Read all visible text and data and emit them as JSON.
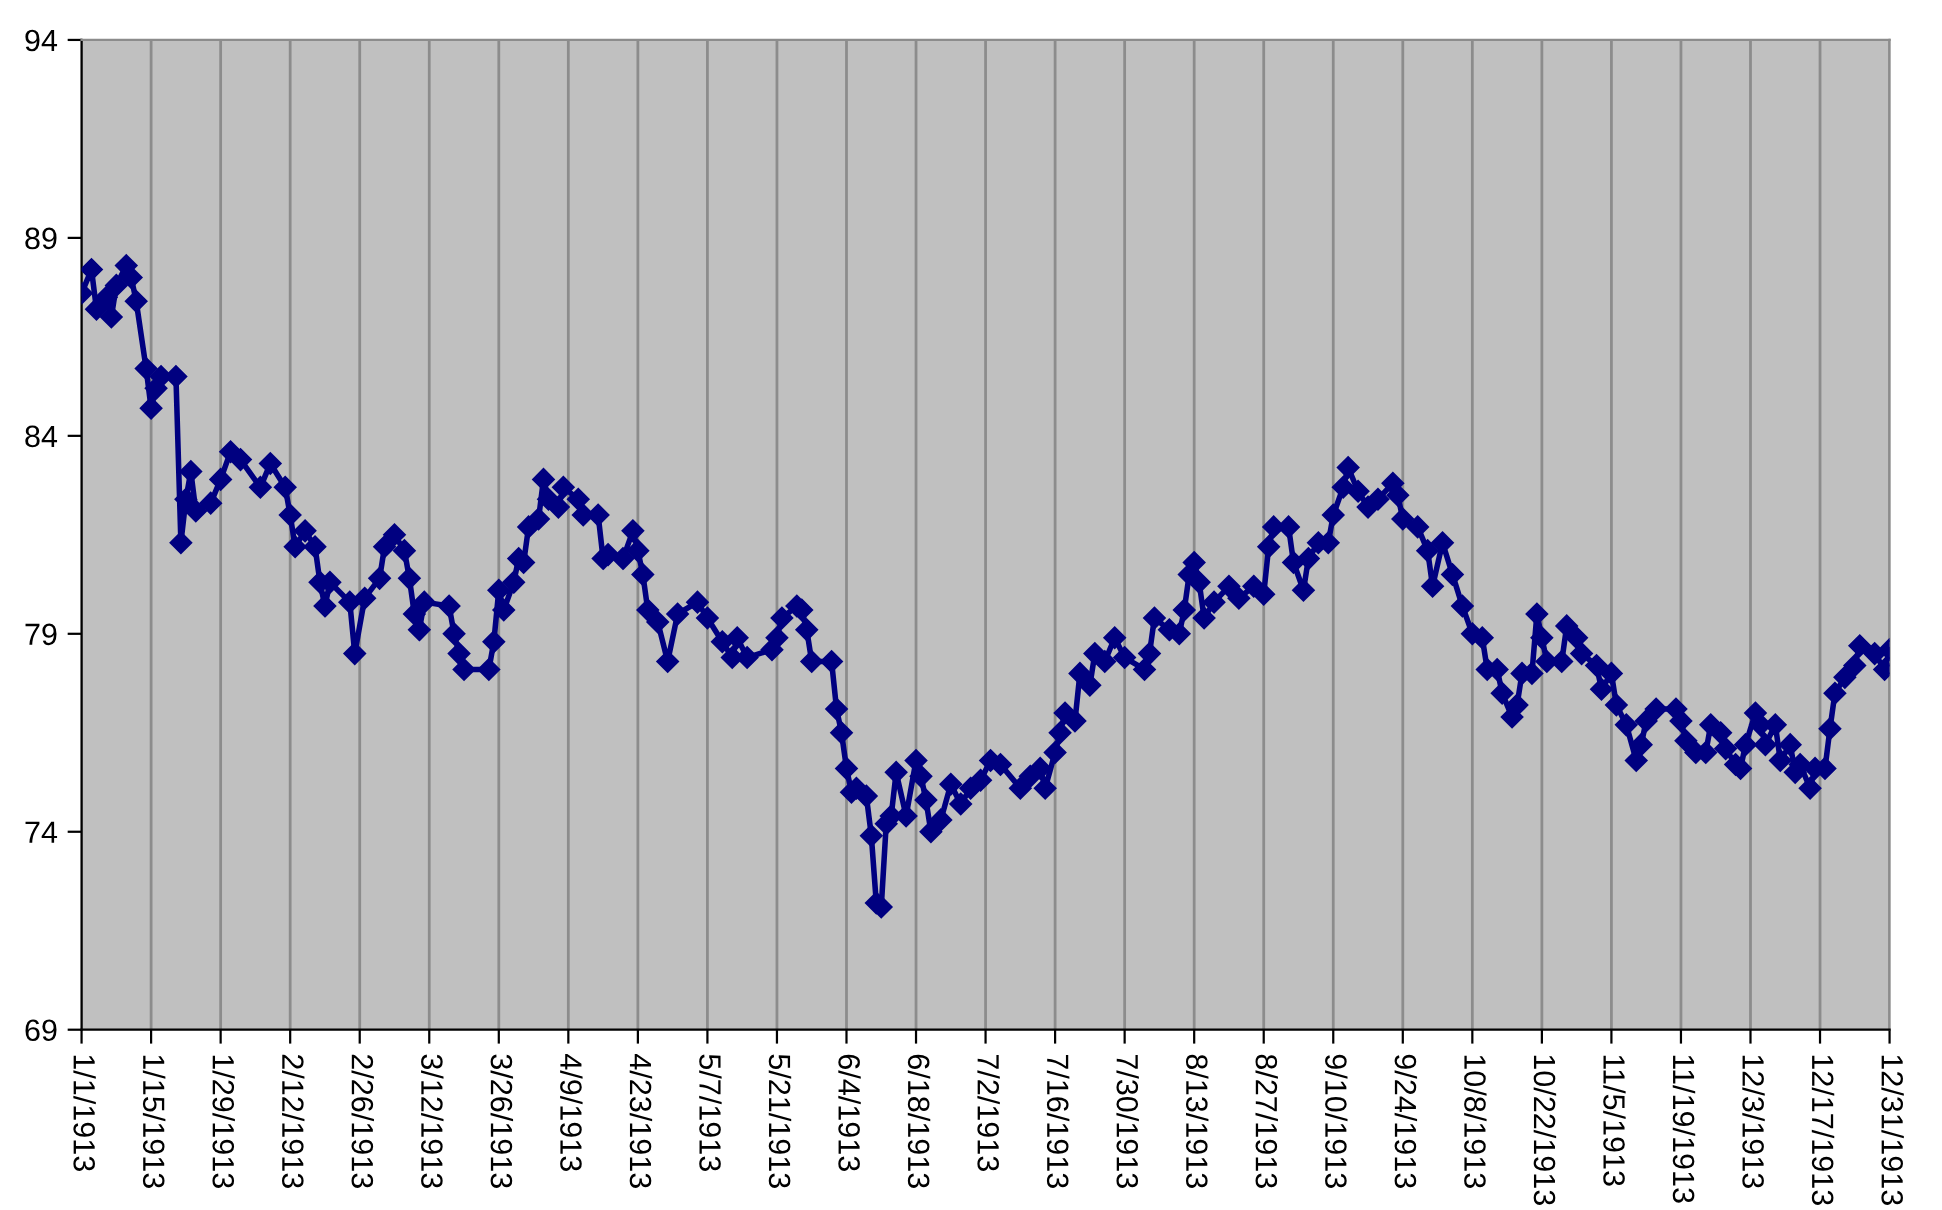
{
  "chart_data": {
    "type": "line",
    "x": [
      "1913-01-01",
      "1913-01-03",
      "1913-01-04",
      "1913-01-06",
      "1913-01-07",
      "1913-01-08",
      "1913-01-10",
      "1913-01-11",
      "1913-01-12",
      "1913-01-14",
      "1913-01-15",
      "1913-01-16",
      "1913-01-17",
      "1913-01-20",
      "1913-01-21",
      "1913-01-22",
      "1913-01-23",
      "1913-01-24",
      "1913-01-27",
      "1913-01-29",
      "1913-01-31",
      "1913-02-02",
      "1913-02-06",
      "1913-02-08",
      "1913-02-11",
      "1913-02-12",
      "1913-02-13",
      "1913-02-15",
      "1913-02-17",
      "1913-02-18",
      "1913-02-19",
      "1913-02-20",
      "1913-02-24",
      "1913-02-25",
      "1913-02-27",
      "1913-03-02",
      "1913-03-03",
      "1913-03-05",
      "1913-03-07",
      "1913-03-08",
      "1913-03-09",
      "1913-03-10",
      "1913-03-11",
      "1913-03-16",
      "1913-03-17",
      "1913-03-18",
      "1913-03-19",
      "1913-03-24",
      "1913-03-25",
      "1913-03-26",
      "1913-03-27",
      "1913-03-29",
      "1913-03-30",
      "1913-03-31",
      "1913-04-01",
      "1913-04-03",
      "1913-04-04",
      "1913-04-05",
      "1913-04-07",
      "1913-04-08",
      "1913-04-11",
      "1913-04-12",
      "1913-04-15",
      "1913-04-16",
      "1913-04-17",
      "1913-04-20",
      "1913-04-22",
      "1913-04-23",
      "1913-04-24",
      "1913-04-25",
      "1913-04-27",
      "1913-04-29",
      "1913-05-01",
      "1913-05-05",
      "1913-05-07",
      "1913-05-10",
      "1913-05-12",
      "1913-05-13",
      "1913-05-15",
      "1913-05-20",
      "1913-05-21",
      "1913-05-22",
      "1913-05-25",
      "1913-05-26",
      "1913-05-27",
      "1913-05-28",
      "1913-06-01",
      "1913-06-02",
      "1913-06-03",
      "1913-06-04",
      "1913-06-05",
      "1913-06-06",
      "1913-06-08",
      "1913-06-09",
      "1913-06-10",
      "1913-06-11",
      "1913-06-12",
      "1913-06-13",
      "1913-06-14",
      "1913-06-16",
      "1913-06-18",
      "1913-06-19",
      "1913-06-20",
      "1913-06-21",
      "1913-06-23",
      "1913-06-25",
      "1913-06-27",
      "1913-06-29",
      "1913-07-01",
      "1913-07-03",
      "1913-07-05",
      "1913-07-09",
      "1913-07-11",
      "1913-07-13",
      "1913-07-14",
      "1913-07-16",
      "1913-07-17",
      "1913-07-18",
      "1913-07-20",
      "1913-07-21",
      "1913-07-23",
      "1913-07-24",
      "1913-07-26",
      "1913-07-28",
      "1913-07-30",
      "1913-08-03",
      "1913-08-04",
      "1913-08-05",
      "1913-08-08",
      "1913-08-10",
      "1913-08-11",
      "1913-08-12",
      "1913-08-13",
      "1913-08-14",
      "1913-08-15",
      "1913-08-17",
      "1913-08-20",
      "1913-08-22",
      "1913-08-25",
      "1913-08-27",
      "1913-08-28",
      "1913-08-29",
      "1913-09-01",
      "1913-09-02",
      "1913-09-04",
      "1913-09-05",
      "1913-09-07",
      "1913-09-09",
      "1913-09-10",
      "1913-09-12",
      "1913-09-13",
      "1913-09-15",
      "1913-09-17",
      "1913-09-19",
      "1913-09-22",
      "1913-09-23",
      "1913-09-24",
      "1913-09-27",
      "1913-09-29",
      "1913-09-30",
      "1913-10-02",
      "1913-10-04",
      "1913-10-06",
      "1913-10-08",
      "1913-10-10",
      "1913-10-11",
      "1913-10-13",
      "1913-10-14",
      "1913-10-16",
      "1913-10-17",
      "1913-10-18",
      "1913-10-20",
      "1913-10-21",
      "1913-10-22",
      "1913-10-23",
      "1913-10-26",
      "1913-10-27",
      "1913-10-29",
      "1913-10-30",
      "1913-11-02",
      "1913-11-03",
      "1913-11-05",
      "1913-11-06",
      "1913-11-08",
      "1913-11-10",
      "1913-11-11",
      "1913-11-12",
      "1913-11-14",
      "1913-11-18",
      "1913-11-19",
      "1913-11-20",
      "1913-11-22",
      "1913-11-24",
      "1913-11-25",
      "1913-11-27",
      "1913-11-28",
      "1913-11-30",
      "1913-12-01",
      "1913-12-02",
      "1913-12-04",
      "1913-12-05",
      "1913-12-06",
      "1913-12-08",
      "1913-12-09",
      "1913-12-11",
      "1913-12-12",
      "1913-12-13",
      "1913-12-15",
      "1913-12-16",
      "1913-12-18",
      "1913-12-19",
      "1913-12-20",
      "1913-12-22",
      "1913-12-24",
      "1913-12-25",
      "1913-12-28",
      "1913-12-30",
      "1913-12-31"
    ],
    "series": [
      {
        "color": "#000080",
        "values": [
          87.6,
          88.2,
          87.2,
          87.5,
          87.0,
          87.8,
          88.3,
          88.0,
          87.4,
          85.7,
          84.7,
          85.2,
          85.5,
          85.5,
          81.3,
          82.4,
          83.1,
          82.1,
          82.3,
          82.9,
          83.6,
          83.4,
          82.7,
          83.3,
          82.7,
          82.0,
          81.2,
          81.6,
          81.2,
          80.3,
          79.7,
          80.3,
          79.8,
          78.5,
          79.9,
          80.4,
          81.2,
          81.5,
          81.1,
          80.4,
          79.5,
          79.1,
          79.8,
          79.7,
          79.0,
          78.5,
          78.1,
          78.1,
          78.8,
          80.1,
          79.6,
          80.3,
          80.9,
          80.8,
          81.7,
          81.9,
          82.9,
          82.4,
          82.2,
          82.7,
          82.4,
          82.0,
          82.0,
          80.9,
          81.0,
          80.9,
          81.6,
          81.1,
          80.5,
          79.6,
          79.3,
          78.3,
          79.5,
          79.8,
          79.4,
          78.8,
          78.4,
          78.9,
          78.4,
          78.6,
          78.9,
          79.4,
          79.7,
          79.6,
          79.1,
          78.3,
          78.3,
          77.1,
          76.5,
          75.6,
          75.0,
          75.1,
          74.9,
          73.9,
          72.2,
          72.1,
          74.2,
          74.4,
          75.5,
          74.4,
          75.8,
          75.4,
          74.8,
          74.0,
          74.3,
          75.2,
          74.7,
          75.1,
          75.3,
          75.8,
          75.7,
          75.1,
          75.4,
          75.6,
          75.1,
          76.0,
          76.5,
          77.0,
          76.8,
          78.0,
          77.7,
          78.5,
          78.3,
          78.9,
          78.4,
          78.1,
          78.5,
          79.4,
          79.1,
          79.0,
          79.6,
          80.5,
          80.8,
          80.3,
          79.4,
          79.8,
          80.2,
          79.9,
          80.2,
          80.0,
          81.2,
          81.7,
          81.7,
          80.8,
          80.1,
          80.9,
          81.3,
          81.3,
          82.0,
          82.7,
          83.2,
          82.6,
          82.2,
          82.4,
          82.8,
          82.5,
          81.9,
          81.7,
          81.1,
          80.2,
          81.3,
          80.5,
          79.7,
          79.0,
          78.9,
          78.1,
          78.1,
          77.5,
          76.9,
          77.2,
          78.0,
          78.0,
          79.5,
          78.9,
          78.3,
          78.3,
          79.2,
          78.9,
          78.5,
          78.2,
          77.6,
          78.0,
          77.2,
          76.7,
          75.8,
          76.2,
          76.8,
          77.1,
          77.1,
          76.8,
          76.3,
          76.0,
          76.0,
          76.7,
          76.5,
          76.1,
          75.7,
          75.6,
          76.2,
          77.0,
          76.7,
          76.2,
          76.7,
          75.8,
          76.2,
          75.5,
          75.7,
          75.1,
          75.6,
          75.6,
          76.6,
          77.5,
          77.9,
          78.2,
          78.7,
          78.5,
          78.1,
          78.6
        ]
      }
    ],
    "xlim": [
      "1913-01-01",
      "1913-12-31"
    ],
    "xticks": [
      {
        "value": "1913-01-01",
        "label": "1/1/1913"
      },
      {
        "value": "1913-01-15",
        "label": "1/15/1913"
      },
      {
        "value": "1913-01-29",
        "label": "1/29/1913"
      },
      {
        "value": "1913-02-12",
        "label": "2/12/1913"
      },
      {
        "value": "1913-02-26",
        "label": "2/26/1913"
      },
      {
        "value": "1913-03-12",
        "label": "3/12/1913"
      },
      {
        "value": "1913-03-26",
        "label": "3/26/1913"
      },
      {
        "value": "1913-04-09",
        "label": "4/9/1913"
      },
      {
        "value": "1913-04-23",
        "label": "4/23/1913"
      },
      {
        "value": "1913-05-07",
        "label": "5/7/1913"
      },
      {
        "value": "1913-05-21",
        "label": "5/21/1913"
      },
      {
        "value": "1913-06-04",
        "label": "6/4/1913"
      },
      {
        "value": "1913-06-18",
        "label": "6/18/1913"
      },
      {
        "value": "1913-07-02",
        "label": "7/2/1913"
      },
      {
        "value": "1913-07-16",
        "label": "7/16/1913"
      },
      {
        "value": "1913-07-30",
        "label": "7/30/1913"
      },
      {
        "value": "1913-08-13",
        "label": "8/13/1913"
      },
      {
        "value": "1913-08-27",
        "label": "8/27/1913"
      },
      {
        "value": "1913-09-10",
        "label": "9/10/1913"
      },
      {
        "value": "1913-09-24",
        "label": "9/24/1913"
      },
      {
        "value": "1913-10-08",
        "label": "10/8/1913"
      },
      {
        "value": "1913-10-22",
        "label": "10/22/1913"
      },
      {
        "value": "1913-11-05",
        "label": "11/5/1913"
      },
      {
        "value": "1913-11-19",
        "label": "11/19/1913"
      },
      {
        "value": "1913-12-03",
        "label": "12/3/1913"
      },
      {
        "value": "1913-12-17",
        "label": "12/17/1913"
      },
      {
        "value": "1913-12-31",
        "label": "12/31/1913"
      }
    ],
    "ylim": [
      69,
      94
    ],
    "yticks": [
      69,
      74,
      79,
      84,
      89,
      94
    ],
    "grid": "x",
    "marker": "diamond",
    "line_style": "solid"
  }
}
